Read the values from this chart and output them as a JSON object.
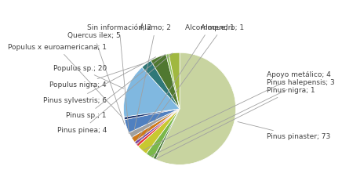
{
  "labels": [
    "Pinus pinaster",
    "Pinus nigra",
    "Pinus halepensis",
    "Apoyo metálico",
    "Almendro",
    "Alcornoque",
    "Álamo",
    "Sin información",
    "Quercus ilex",
    "Populus x euroamericana",
    "Populus sp.",
    "Populus nigra",
    "Pinus sylvestris",
    "Pinus sp.",
    "Pinus pinea"
  ],
  "values": [
    73,
    1,
    3,
    4,
    1,
    1,
    2,
    2,
    5,
    1,
    20,
    4,
    6,
    1,
    4
  ],
  "colors": [
    "#c8d4a0",
    "#4a7a3a",
    "#7ab84a",
    "#c8c830",
    "#e83030",
    "#8040a0",
    "#d07818",
    "#a0a0a0",
    "#5080c0",
    "#203870",
    "#80b8e0",
    "#307878",
    "#507830",
    "#90c060",
    "#a0b840"
  ],
  "label_positions": {
    "Pinus pinaster": [
      1.0,
      -0.35,
      "left"
    ],
    "Pinus nigra": [
      1.0,
      0.22,
      "left"
    ],
    "Pinus halepensis": [
      1.0,
      0.3,
      "left"
    ],
    "Apoyo metálico": [
      1.0,
      0.38,
      "left"
    ],
    "Almendro": [
      -0.05,
      1.0,
      "center"
    ],
    "Alcornoque": [
      -0.22,
      1.0,
      "center"
    ],
    "Álamo": [
      -0.4,
      1.0,
      "center"
    ],
    "Sin información": [
      -0.68,
      1.0,
      "right"
    ],
    "Quercus ilex": [
      -0.85,
      0.85,
      "right"
    ],
    "Populus x euroamericana": [
      -1.0,
      0.65,
      "right"
    ],
    "Populus sp.": [
      -1.0,
      0.38,
      "right"
    ],
    "Populus nigra": [
      -1.0,
      0.15,
      "right"
    ],
    "Pinus sylvestris": [
      -1.0,
      -0.05,
      "right"
    ],
    "Pinus sp.": [
      -1.0,
      -0.22,
      "right"
    ],
    "Pinus pinea": [
      -1.0,
      -0.38,
      "right"
    ]
  },
  "fontsize": 6.5,
  "startangle": 90
}
